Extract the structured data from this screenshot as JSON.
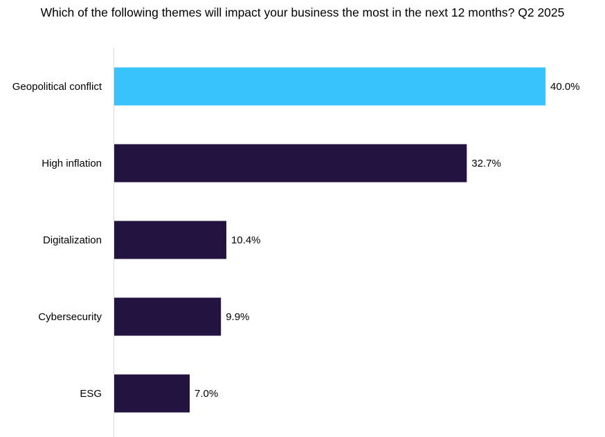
{
  "chart_data": {
    "type": "bar",
    "orientation": "horizontal",
    "title": "Which of the following themes will impact your business the most in the next 12 months? Q2 2025",
    "categories": [
      "Geopolitical conflict",
      "High inflation",
      "Digitalization",
      "Cybersecurity",
      "ESG"
    ],
    "values": [
      40.0,
      32.7,
      10.4,
      9.9,
      7.0
    ],
    "value_labels": [
      "40.0%",
      "32.7%",
      "10.4%",
      "9.9%",
      "7.0%"
    ],
    "unit": "%",
    "xlim": [
      0,
      40
    ],
    "highlight_index": 0,
    "colors": {
      "highlight": "#38C3FC",
      "default": "#221340",
      "axis": "#D9D9D9"
    },
    "grid": false,
    "legend": "none"
  }
}
